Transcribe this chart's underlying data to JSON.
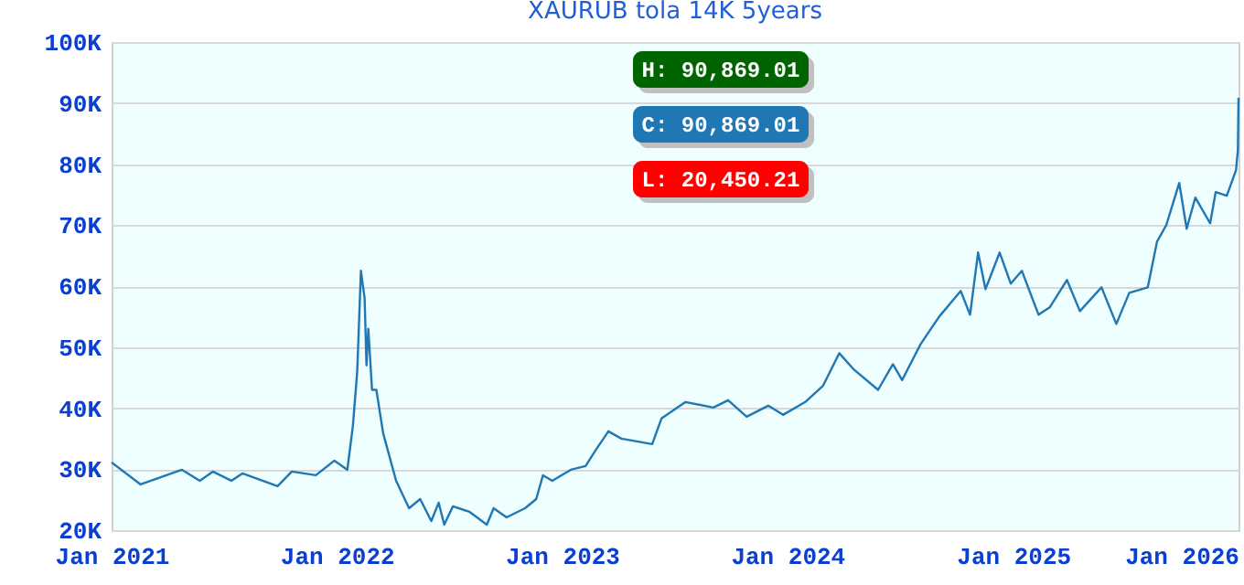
{
  "chart_data": {
    "type": "line",
    "title": "XAURUB tola 14K 5years",
    "x": [
      "2021-01-01",
      "2021-02-17",
      "2021-04-25",
      "2021-05-24",
      "2021-06-14",
      "2021-07-14",
      "2021-08-01",
      "2021-09-27",
      "2021-10-20",
      "2021-11-28",
      "2021-12-28",
      "2022-01-18",
      "2022-01-27",
      "2022-02-03",
      "2022-02-09",
      "2022-02-15",
      "2022-02-18",
      "2022-02-21",
      "2022-02-27",
      "2022-03-06",
      "2022-03-17",
      "2022-04-07",
      "2022-04-28",
      "2022-05-16",
      "2022-06-03",
      "2022-06-15",
      "2022-06-24",
      "2022-07-08",
      "2022-08-04",
      "2022-09-01",
      "2022-09-12",
      "2022-10-03",
      "2022-11-02",
      "2022-11-20",
      "2022-12-01",
      "2022-12-16",
      "2023-01-15",
      "2023-02-08",
      "2023-02-23",
      "2023-03-17",
      "2023-04-07",
      "2023-05-27",
      "2023-06-11",
      "2023-07-20",
      "2023-09-03",
      "2023-09-27",
      "2023-10-27",
      "2023-12-01",
      "2023-12-25",
      "2024-01-30",
      "2024-02-28",
      "2024-03-25",
      "2024-04-18",
      "2024-05-27",
      "2024-06-20",
      "2024-07-05",
      "2024-08-04",
      "2024-09-03",
      "2024-10-08",
      "2024-10-23",
      "2024-11-05",
      "2024-11-17",
      "2024-12-10",
      "2024-12-28",
      "2025-01-15",
      "2025-02-11",
      "2025-03-01",
      "2025-03-29",
      "2025-04-19",
      "2025-05-24",
      "2025-06-17",
      "2025-07-08",
      "2025-08-07",
      "2025-08-22",
      "2025-09-06",
      "2025-09-27",
      "2025-10-09",
      "2025-10-23",
      "2025-11-16",
      "2025-11-25",
      "2025-12-13",
      "2025-12-28",
      "2025-12-31",
      "2026-01-01"
    ],
    "series": [
      {
        "color": "#1f77b4",
        "values": [
          31100,
          27500,
          29900,
          28100,
          29600,
          28100,
          29300,
          27200,
          29600,
          29000,
          31400,
          29900,
          37100,
          46000,
          62500,
          58000,
          47000,
          53000,
          43000,
          43000,
          35900,
          28100,
          23600,
          25100,
          21500,
          24500,
          20900,
          23900,
          23000,
          20900,
          23600,
          22100,
          23600,
          25100,
          29000,
          28100,
          29900,
          30500,
          32900,
          36200,
          35000,
          34100,
          38300,
          41000,
          40100,
          41300,
          38600,
          40400,
          38900,
          41000,
          43700,
          49000,
          46300,
          43000,
          47200,
          44600,
          50500,
          55000,
          59200,
          55300,
          65500,
          59500,
          65500,
          60400,
          62500,
          55300,
          56500,
          61000,
          55900,
          59800,
          53800,
          58900,
          59800,
          67300,
          70000,
          76900,
          69400,
          74500,
          70300,
          75400,
          74800,
          79000,
          82300,
          90869
        ]
      }
    ],
    "xlim": [
      "2021-01-01",
      "2026-01-01"
    ],
    "xticks": [
      {
        "value": "2021-01-01",
        "label": "Jan 2021"
      },
      {
        "value": "2022-01-01",
        "label": "Jan 2022"
      },
      {
        "value": "2023-01-01",
        "label": "Jan 2023"
      },
      {
        "value": "2024-01-01",
        "label": "Jan 2024"
      },
      {
        "value": "2025-01-01",
        "label": "Jan 2025"
      },
      {
        "value": "2026-01-01",
        "label": "Jan 2026"
      }
    ],
    "ylim": [
      20000,
      100000
    ],
    "yticks": [
      {
        "value": 20000,
        "label": "20K"
      },
      {
        "value": 30000,
        "label": "30K"
      },
      {
        "value": 40000,
        "label": "40K"
      },
      {
        "value": 50000,
        "label": "50K"
      },
      {
        "value": 60000,
        "label": "60K"
      },
      {
        "value": 70000,
        "label": "70K"
      },
      {
        "value": 80000,
        "label": "80K"
      },
      {
        "value": 90000,
        "label": "90K"
      },
      {
        "value": 100000,
        "label": "100K"
      }
    ],
    "grid": "y",
    "marker": "none",
    "line_style": "solid",
    "annotations": [
      "H: 90,869.01",
      "C: 90,869.01",
      "L: 20,450.21"
    ]
  }
}
